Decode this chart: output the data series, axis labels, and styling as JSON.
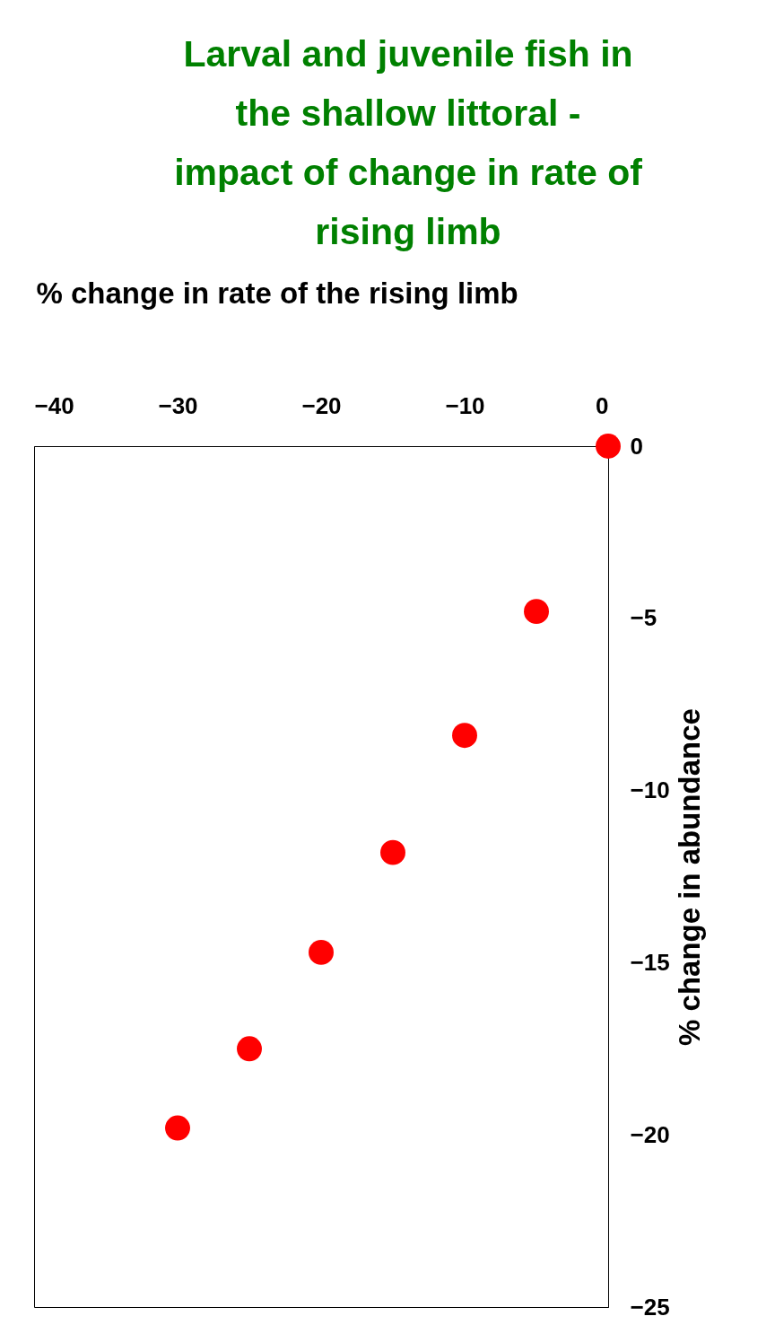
{
  "chart_data": {
    "type": "scatter",
    "title": "Larval and juvenile fish in the shallow littoral - impact of change in rate of rising limb",
    "xlabel": "% change in rate of the rising limb",
    "ylabel": "% change in abundance",
    "x": [
      0,
      -5,
      -10,
      -15,
      -20,
      -25,
      -30
    ],
    "values": [
      0,
      -4.8,
      -8.4,
      -11.8,
      -14.7,
      -17.5,
      -19.8
    ],
    "color": "#ff0000",
    "marker": "circle",
    "grid": false,
    "xlim": [
      -40,
      0
    ],
    "xticks": [
      -40,
      -30,
      -20,
      -10,
      0
    ],
    "ylim": [
      -25,
      0
    ],
    "yticks": [
      -25,
      -20,
      -15,
      -10,
      -5,
      0
    ]
  }
}
